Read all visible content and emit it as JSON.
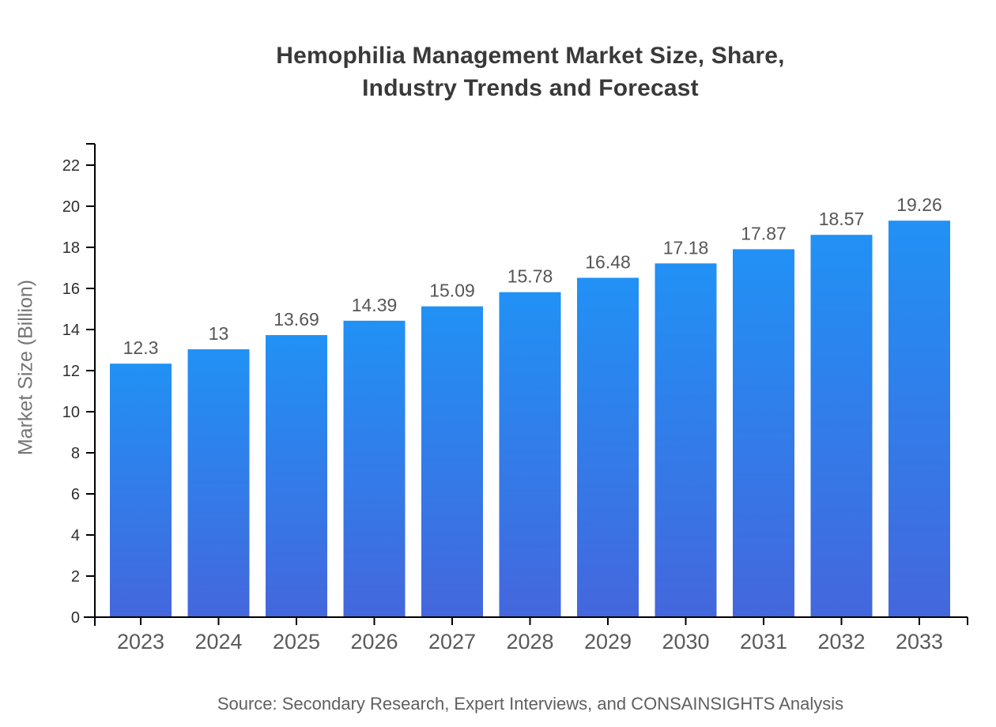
{
  "title": {
    "line1": "Hemophilia Management Market Size, Share,",
    "line2": "Industry Trends and Forecast"
  },
  "source_note": "Source: Secondary Research, Expert Interviews, and CONSAINSIGHTS Analysis",
  "chart_data": {
    "type": "bar",
    "title": "Hemophilia Management Market Size, Share, Industry Trends and Forecast",
    "categories": [
      "2023",
      "2024",
      "2025",
      "2026",
      "2027",
      "2028",
      "2029",
      "2030",
      "2031",
      "2032",
      "2033"
    ],
    "values": [
      12.3,
      13,
      13.69,
      14.39,
      15.09,
      15.78,
      16.48,
      17.18,
      17.87,
      18.57,
      19.26
    ],
    "value_labels": [
      "12.3",
      "13",
      "13.69",
      "14.39",
      "15.09",
      "15.78",
      "16.48",
      "17.18",
      "17.87",
      "18.57",
      "19.26"
    ],
    "xlabel": "",
    "ylabel": "Market Size (Billion)",
    "ylim": [
      0,
      23
    ],
    "yticks": [
      0,
      2,
      4,
      6,
      8,
      10,
      12,
      14,
      16,
      18,
      20,
      22
    ],
    "grid": false,
    "legend": "none"
  },
  "colors": {
    "background": "#ffffff",
    "bar_gradient_top": "#2191f5",
    "bar_gradient_bottom": "#4467dd",
    "axis": "#000000",
    "title_text": "#393939",
    "ytick_text": "#2e2e2e",
    "xtick_text": "#5a5a5a",
    "value_label_text": "#565656",
    "ylabel_text": "#757575",
    "source_text": "#5f5f5f"
  }
}
